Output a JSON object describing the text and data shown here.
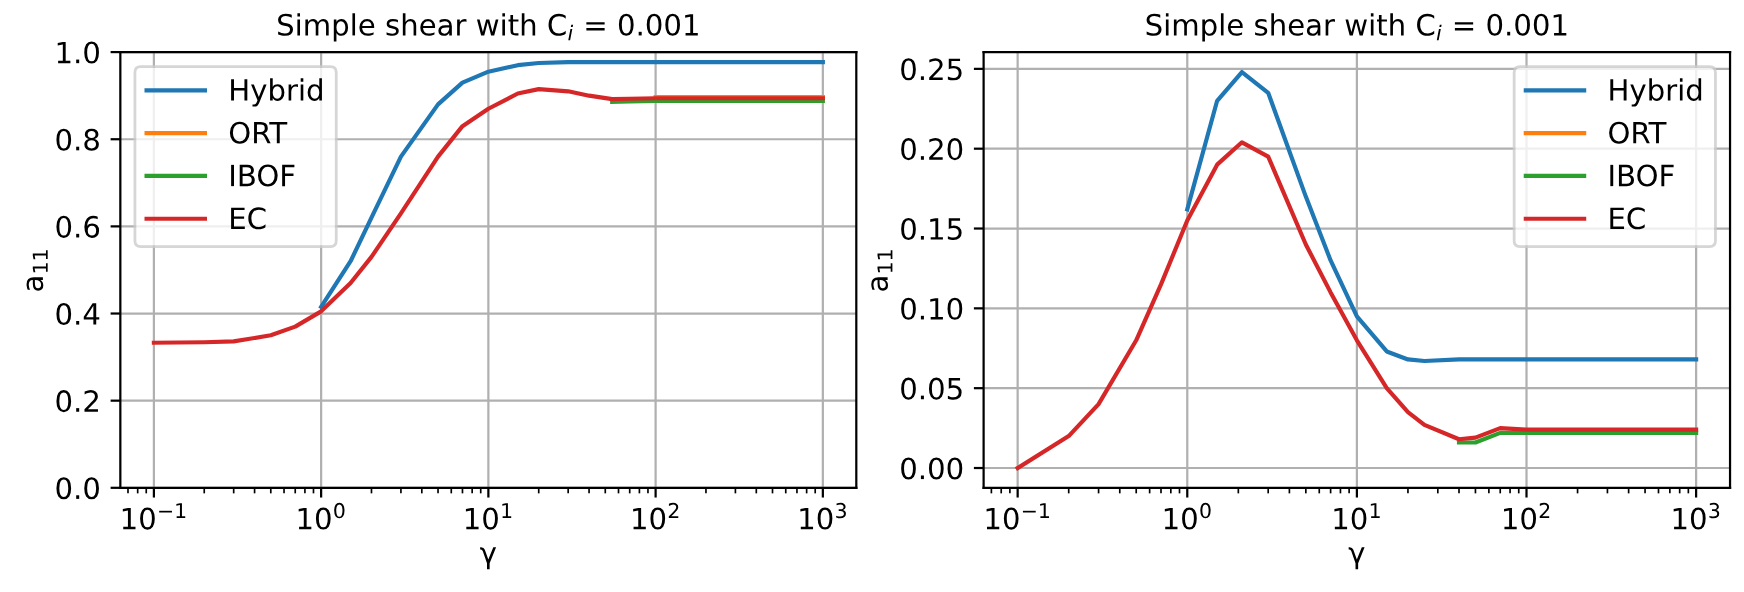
{
  "chart_data": [
    {
      "type": "line",
      "title": "Simple shear with C$_{i}$ = 0.001",
      "xlabel": "γ",
      "ylabel": "a$_{11}$",
      "log": "x",
      "grid": true,
      "legend": "top left",
      "xlim": [
        0.063,
        1585
      ],
      "xticks": [
        {
          "value": 0.1,
          "label": "10$^{−1}$"
        },
        {
          "value": 1,
          "label": "10$^{0}$"
        },
        {
          "value": 10,
          "label": "10$^{1}$"
        },
        {
          "value": 100,
          "label": "10$^{2}$"
        },
        {
          "value": 1000,
          "label": "10$^{3}$"
        }
      ],
      "ylim": [
        0,
        1
      ],
      "yticks": [
        {
          "value": 0,
          "label": "0.0"
        },
        {
          "value": 0.2,
          "label": "0.2"
        },
        {
          "value": 0.4,
          "label": "0.4"
        },
        {
          "value": 0.6,
          "label": "0.6"
        },
        {
          "value": 0.8,
          "label": "0.8"
        },
        {
          "value": 1,
          "label": "1.0"
        }
      ],
      "x": [
        0.1,
        0.2,
        0.3,
        0.5,
        0.7,
        1,
        1.5,
        2,
        3,
        5,
        7,
        10,
        15,
        20,
        30,
        40,
        55,
        70,
        100,
        1000
      ],
      "series": [
        {
          "name": "Hybrid",
          "color": "#1f77b4",
          "values": [
            null,
            null,
            null,
            null,
            null,
            0.415,
            0.52,
            0.62,
            0.76,
            0.88,
            0.93,
            0.955,
            0.97,
            0.975,
            0.977,
            0.977,
            0.977,
            0.977,
            0.977,
            0.977
          ]
        },
        {
          "name": "ORT",
          "color": "#ff7f0e",
          "values": [
            null,
            null,
            null,
            null,
            null,
            null,
            null,
            null,
            null,
            null,
            null,
            null,
            null,
            null,
            null,
            null,
            null,
            null,
            0.897,
            0.897
          ]
        },
        {
          "name": "IBOF",
          "color": "#2ca02c",
          "values": [
            null,
            null,
            null,
            null,
            null,
            null,
            null,
            null,
            null,
            null,
            null,
            null,
            null,
            null,
            null,
            null,
            0.886,
            0.887,
            0.888,
            0.888
          ]
        },
        {
          "name": "EC",
          "color": "#d62728",
          "values": [
            0.333,
            0.334,
            0.336,
            0.35,
            0.37,
            0.405,
            0.47,
            0.53,
            0.63,
            0.76,
            0.83,
            0.87,
            0.905,
            0.915,
            0.91,
            0.9,
            0.892,
            0.893,
            0.894,
            0.894
          ]
        }
      ]
    },
    {
      "type": "line",
      "title": "Simple shear with C$_{i}$ = 0.001",
      "xlabel": "γ",
      "ylabel": "a$_{11}$",
      "log": "x",
      "grid": true,
      "legend": "top right",
      "xlim": [
        0.063,
        1585
      ],
      "xticks": [
        {
          "value": 0.1,
          "label": "10$^{−1}$"
        },
        {
          "value": 1,
          "label": "10$^{0}$"
        },
        {
          "value": 10,
          "label": "10$^{1}$"
        },
        {
          "value": 100,
          "label": "10$^{2}$"
        },
        {
          "value": 1000,
          "label": "10$^{3}$"
        }
      ],
      "ylim": [
        -0.0124,
        0.2605
      ],
      "yticks": [
        {
          "value": 0,
          "label": "0.00"
        },
        {
          "value": 0.05,
          "label": "0.05"
        },
        {
          "value": 0.1,
          "label": "0.10"
        },
        {
          "value": 0.15,
          "label": "0.15"
        },
        {
          "value": 0.2,
          "label": "0.20"
        },
        {
          "value": 0.25,
          "label": "0.25"
        }
      ],
      "x": [
        0.1,
        0.2,
        0.3,
        0.5,
        0.7,
        1,
        1.5,
        2.1,
        3,
        5,
        7,
        10,
        15,
        20,
        25,
        40,
        50,
        70,
        100,
        1000
      ],
      "series": [
        {
          "name": "Hybrid",
          "color": "#1f77b4",
          "values": [
            null,
            null,
            null,
            null,
            null,
            0.162,
            0.23,
            0.248,
            0.235,
            0.17,
            0.13,
            0.095,
            0.073,
            0.068,
            0.067,
            0.068,
            0.068,
            0.068,
            0.068,
            0.068
          ]
        },
        {
          "name": "ORT",
          "color": "#ff7f0e",
          "values": [
            null,
            null,
            null,
            null,
            null,
            null,
            null,
            null,
            null,
            null,
            null,
            null,
            null,
            null,
            null,
            null,
            null,
            null,
            null,
            null
          ]
        },
        {
          "name": "IBOF",
          "color": "#2ca02c",
          "values": [
            null,
            null,
            null,
            null,
            null,
            null,
            null,
            null,
            null,
            null,
            null,
            null,
            null,
            null,
            null,
            0.016,
            0.016,
            0.022,
            0.022,
            0.022
          ]
        },
        {
          "name": "EC",
          "color": "#d62728",
          "values": [
            0,
            0.02,
            0.04,
            0.08,
            0.115,
            0.155,
            0.19,
            0.204,
            0.195,
            0.14,
            0.11,
            0.08,
            0.05,
            0.035,
            0.027,
            0.018,
            0.019,
            0.025,
            0.024,
            0.024
          ]
        }
      ]
    }
  ]
}
